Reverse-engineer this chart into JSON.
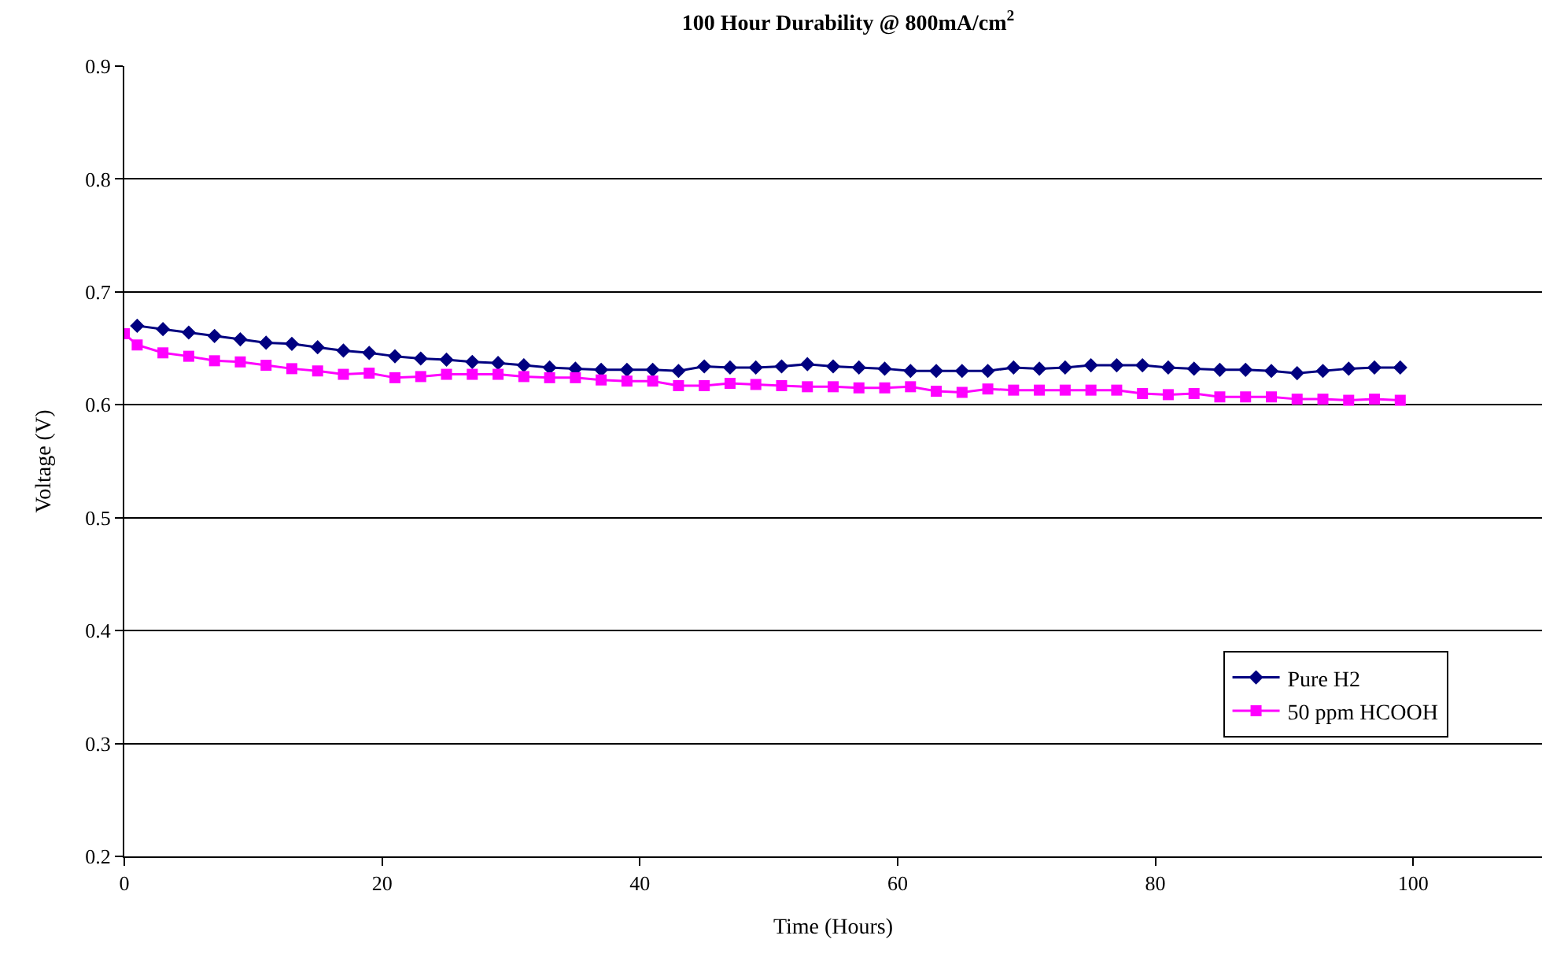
{
  "chart_data": {
    "type": "line",
    "title": "100 Hour Durability @ 800mA/cm$^{2}$",
    "xlabel": "Time (Hours)",
    "ylabel": "Voltage (V)",
    "xlim": [
      0,
      110
    ],
    "xticks": [
      0,
      20,
      40,
      60,
      80,
      100
    ],
    "ylim": [
      0.2,
      0.9
    ],
    "yticks": [
      0.2,
      0.3,
      0.4,
      0.5,
      0.6,
      0.7,
      0.8,
      0.9
    ],
    "grid": "y",
    "legend": "bottom right",
    "line_style": "solid",
    "series": [
      {
        "name": "Pure H2",
        "color": "#000080",
        "marker": "diamond",
        "x": [
          1,
          3,
          5,
          7,
          9,
          11,
          13,
          15,
          17,
          19,
          21,
          23,
          25,
          27,
          29,
          31,
          33,
          35,
          37,
          39,
          41,
          43,
          45,
          47,
          49,
          51,
          53,
          55,
          57,
          59,
          61,
          63,
          65,
          67,
          69,
          71,
          73,
          75,
          77,
          79,
          81,
          83,
          85,
          87,
          89,
          91,
          93,
          95,
          97,
          99
        ],
        "values": [
          0.67,
          0.667,
          0.664,
          0.661,
          0.658,
          0.655,
          0.654,
          0.651,
          0.648,
          0.646,
          0.643,
          0.641,
          0.64,
          0.638,
          0.637,
          0.635,
          0.633,
          0.632,
          0.631,
          0.631,
          0.631,
          0.63,
          0.634,
          0.633,
          0.633,
          0.634,
          0.636,
          0.634,
          0.633,
          0.632,
          0.63,
          0.63,
          0.63,
          0.63,
          0.633,
          0.632,
          0.633,
          0.635,
          0.635,
          0.635,
          0.633,
          0.632,
          0.631,
          0.631,
          0.63,
          0.628,
          0.63,
          0.632,
          0.633,
          0.633
        ]
      },
      {
        "name": "50 ppm HCOOH",
        "color": "#ff00ff",
        "marker": "square",
        "x": [
          0,
          1,
          3,
          5,
          7,
          9,
          11,
          13,
          15,
          17,
          19,
          21,
          23,
          25,
          27,
          29,
          31,
          33,
          35,
          37,
          39,
          41,
          43,
          45,
          47,
          49,
          51,
          53,
          55,
          57,
          59,
          61,
          63,
          65,
          67,
          69,
          71,
          73,
          75,
          77,
          79,
          81,
          83,
          85,
          87,
          89,
          91,
          93,
          95,
          97,
          99
        ],
        "values": [
          0.663,
          0.653,
          0.646,
          0.643,
          0.639,
          0.638,
          0.635,
          0.632,
          0.63,
          0.627,
          0.628,
          0.624,
          0.625,
          0.627,
          0.627,
          0.627,
          0.625,
          0.624,
          0.624,
          0.622,
          0.621,
          0.621,
          0.617,
          0.617,
          0.619,
          0.618,
          0.617,
          0.616,
          0.616,
          0.615,
          0.615,
          0.616,
          0.612,
          0.611,
          0.614,
          0.613,
          0.613,
          0.613,
          0.613,
          0.613,
          0.61,
          0.609,
          0.61,
          0.607,
          0.607,
          0.607,
          0.605,
          0.605,
          0.604,
          0.605,
          0.604
        ]
      }
    ]
  }
}
